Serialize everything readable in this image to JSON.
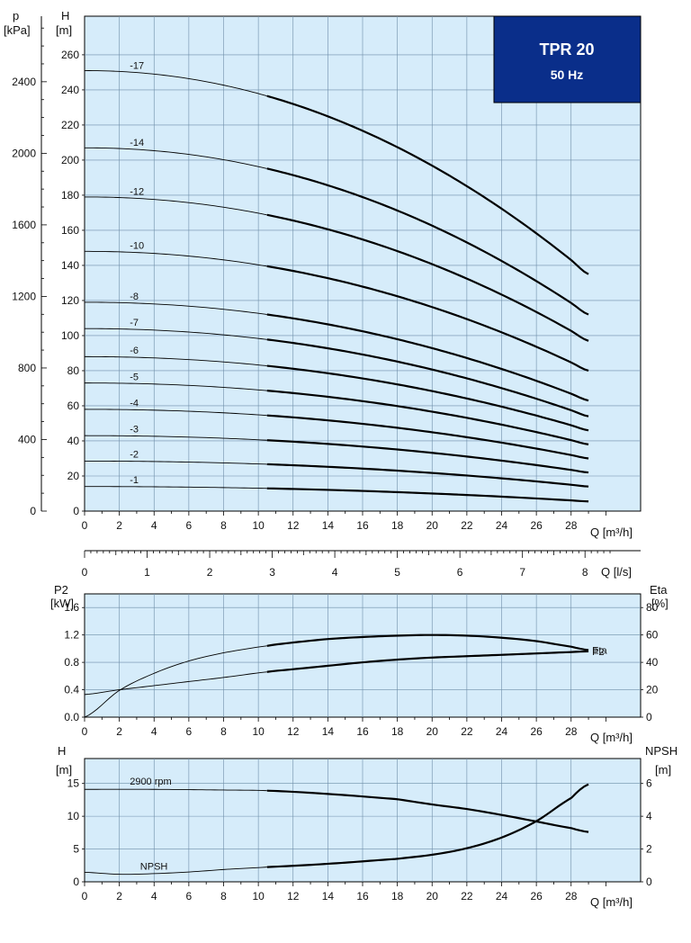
{
  "badge": {
    "title": "TPR 20",
    "subtitle": "50 Hz",
    "color": "#0a2e8a"
  },
  "colors": {
    "plot_bg": "#d6ecfa",
    "grid": "#6e8ea8",
    "curve": "#000000"
  },
  "chart_data": [
    {
      "id": "head",
      "type": "line",
      "x_label": "Q [m³/h]",
      "y_label_left_top": "H",
      "y_unit_left": "[m]",
      "y2_label_top": "p",
      "y2_unit": "[kPa]",
      "x_ticks": [
        0,
        2,
        4,
        6,
        8,
        10,
        12,
        14,
        16,
        18,
        20,
        22,
        24,
        26,
        28
      ],
      "y_ticks": [
        0,
        20,
        40,
        60,
        80,
        100,
        120,
        140,
        160,
        180,
        200,
        220,
        240,
        260
      ],
      "y2_ticks": [
        0,
        400,
        800,
        1200,
        1600,
        2000,
        2400
      ],
      "xlim": [
        0,
        32
      ],
      "ylim": [
        0,
        282
      ],
      "grid": true,
      "bold_from_x": 10.5,
      "curve_x_max": 29,
      "series": [
        {
          "name": "-17",
          "shutoff": 251,
          "end": 135
        },
        {
          "name": "-14",
          "shutoff": 207,
          "end": 112
        },
        {
          "name": "-12",
          "shutoff": 179,
          "end": 97
        },
        {
          "name": "-10",
          "shutoff": 148,
          "end": 80
        },
        {
          "name": "-8",
          "shutoff": 119,
          "end": 63
        },
        {
          "name": "-7",
          "shutoff": 104,
          "end": 54
        },
        {
          "name": "-6",
          "shutoff": 88,
          "end": 46
        },
        {
          "name": "-5",
          "shutoff": 73,
          "end": 38
        },
        {
          "name": "-4",
          "shutoff": 58,
          "end": 30
        },
        {
          "name": "-3",
          "shutoff": 43,
          "end": 22
        },
        {
          "name": "-2",
          "shutoff": 28.5,
          "end": 14
        },
        {
          "name": "-1",
          "shutoff": 14,
          "end": 5.5
        }
      ]
    },
    {
      "id": "flow-ls",
      "type": "axis",
      "x_label": "Q [l/s]",
      "ticks": [
        0,
        1,
        2,
        3,
        4,
        5,
        6,
        7,
        8
      ],
      "m3h_per_ls": 3.6
    },
    {
      "id": "power",
      "type": "line",
      "x_label": "Q [m³/h]",
      "y_label": "P2",
      "y_unit": "[kW]",
      "y2_label": "Eta",
      "y2_unit": "[%]",
      "x_ticks": [
        0,
        2,
        4,
        6,
        8,
        10,
        12,
        14,
        16,
        18,
        20,
        22,
        24,
        26,
        28
      ],
      "y_ticks": [
        0.0,
        0.4,
        0.8,
        1.2,
        1.6
      ],
      "y2_ticks": [
        0,
        20,
        40,
        60,
        80
      ],
      "ylim": [
        0,
        1.8
      ],
      "grid": true,
      "series": [
        {
          "name": "Eta",
          "axis": "y2",
          "x": [
            0,
            2,
            4,
            6,
            8,
            10.5,
            12,
            14,
            16,
            18,
            20,
            22,
            24,
            26,
            28,
            29
          ],
          "y": [
            0,
            19.5,
            32,
            41,
            47,
            52,
            54.5,
            57,
            58.5,
            59.5,
            60,
            59.5,
            58,
            55.5,
            51.5,
            49
          ]
        },
        {
          "name": "P2",
          "axis": "y",
          "x": [
            0,
            2,
            4,
            6,
            8,
            10.5,
            12,
            14,
            16,
            18,
            20,
            22,
            24,
            26,
            28,
            29
          ],
          "y": [
            0.33,
            0.4,
            0.46,
            0.52,
            0.58,
            0.66,
            0.7,
            0.75,
            0.8,
            0.84,
            0.87,
            0.89,
            0.91,
            0.93,
            0.95,
            0.96
          ]
        }
      ]
    },
    {
      "id": "npsh",
      "type": "line",
      "x_label": "Q [m³/h]",
      "y_label": "H",
      "y_unit": "[m]",
      "y2_label": "NPSH",
      "y2_unit": "[m]",
      "x_ticks": [
        0,
        2,
        4,
        6,
        8,
        10,
        12,
        14,
        16,
        18,
        20,
        22,
        24,
        26,
        28
      ],
      "y_ticks": [
        0,
        5,
        10,
        15
      ],
      "y2_ticks": [
        0,
        2,
        4,
        6
      ],
      "ylim": [
        0,
        18.8
      ],
      "grid": true,
      "series": [
        {
          "name": "2900 rpm",
          "axis": "y",
          "x": [
            0,
            4,
            8,
            10.5,
            14,
            18,
            20,
            22,
            24,
            26,
            28,
            29
          ],
          "y": [
            14.1,
            14.1,
            14,
            13.9,
            13.4,
            12.6,
            11.8,
            11.1,
            10.2,
            9.2,
            8.2,
            7.6
          ]
        },
        {
          "name": "NPSH",
          "axis": "y2",
          "x": [
            0,
            2,
            4,
            6,
            8,
            10.5,
            14,
            18,
            20,
            22,
            24,
            26,
            28,
            29
          ],
          "y": [
            0.58,
            0.46,
            0.5,
            0.6,
            0.75,
            0.9,
            1.1,
            1.4,
            1.65,
            2.05,
            2.7,
            3.7,
            5.1,
            5.95
          ]
        }
      ]
    }
  ]
}
